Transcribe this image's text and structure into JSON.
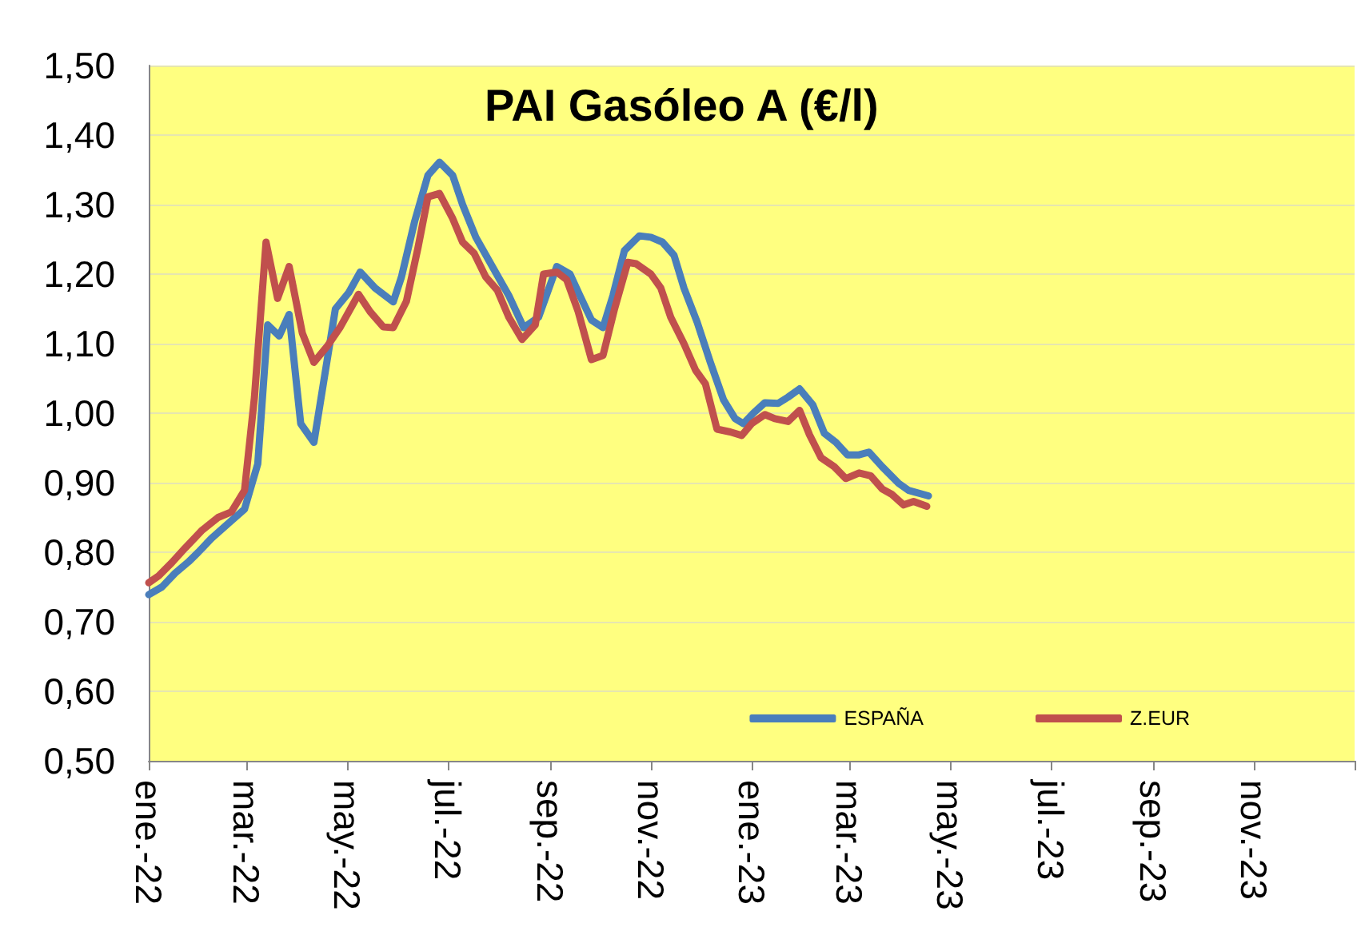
{
  "chart_data": {
    "type": "line",
    "title": "PAI Gasóleo A (€/l)",
    "xlim": [
      "2022-01-01",
      "2024-01-01"
    ],
    "xticks": [
      {
        "value": "2022-01-01",
        "label": "ene.-22"
      },
      {
        "value": "2022-03-01",
        "label": "mar.-22"
      },
      {
        "value": "2022-05-01",
        "label": "may.-22"
      },
      {
        "value": "2022-07-01",
        "label": "jul.-22"
      },
      {
        "value": "2022-09-01",
        "label": "sep.-22"
      },
      {
        "value": "2022-11-01",
        "label": "nov.-22"
      },
      {
        "value": "2023-01-01",
        "label": "ene.-23"
      },
      {
        "value": "2023-03-01",
        "label": "mar.-23"
      },
      {
        "value": "2023-05-01",
        "label": "may.-23"
      },
      {
        "value": "2023-07-01",
        "label": "jul.-23"
      },
      {
        "value": "2023-09-01",
        "label": "sep.-23"
      },
      {
        "value": "2023-11-01",
        "label": "nov.-23"
      },
      {
        "value": "2024-01-01",
        "label": null
      }
    ],
    "ylim": [
      0.5,
      1.5
    ],
    "yticks": [
      {
        "value": 0.5,
        "label": "0,50"
      },
      {
        "value": 0.6,
        "label": "0,60"
      },
      {
        "value": 0.7,
        "label": "0,70"
      },
      {
        "value": 0.8,
        "label": "0,80"
      },
      {
        "value": 0.9,
        "label": "0,90"
      },
      {
        "value": 1.0,
        "label": "1,00"
      },
      {
        "value": 1.1,
        "label": "1,10"
      },
      {
        "value": 1.2,
        "label": "1,20"
      },
      {
        "value": 1.3,
        "label": "1,30"
      },
      {
        "value": 1.4,
        "label": "1,40"
      },
      {
        "value": 1.5,
        "label": "1,50"
      }
    ],
    "grid": "y",
    "legend": "bottom right",
    "marker": "none",
    "series": [
      {
        "name": "ESPAÑA",
        "color": "#4a7ebb",
        "x": [
          "2022-01-01",
          "2022-01-09",
          "2022-01-17",
          "2022-01-25",
          "2022-01-31",
          "2022-02-08",
          "2022-02-17",
          "2022-02-28",
          "2022-03-08",
          "2022-03-14",
          "2022-03-21",
          "2022-03-27",
          "2022-04-03",
          "2022-04-11",
          "2022-04-24",
          "2022-05-02",
          "2022-05-09",
          "2022-05-18",
          "2022-05-29",
          "2022-06-03",
          "2022-06-11",
          "2022-06-19",
          "2022-06-26",
          "2022-07-04",
          "2022-07-10",
          "2022-07-18",
          "2022-07-28",
          "2022-08-07",
          "2022-08-16",
          "2022-08-25",
          "2022-09-05",
          "2022-09-13",
          "2022-09-19",
          "2022-09-26",
          "2022-10-03",
          "2022-10-09",
          "2022-10-16",
          "2022-10-25",
          "2022-11-01",
          "2022-11-08",
          "2022-11-15",
          "2022-11-21",
          "2022-11-29",
          "2022-12-07",
          "2022-12-15",
          "2022-12-22",
          "2022-12-27",
          "2023-01-02",
          "2023-01-09",
          "2023-01-17",
          "2023-01-23",
          "2023-01-30",
          "2023-02-07",
          "2023-02-14",
          "2023-02-21",
          "2023-02-28",
          "2023-03-07",
          "2023-03-13",
          "2023-03-21",
          "2023-03-31",
          "2023-04-06",
          "2023-04-18"
        ],
        "values": [
          0.739,
          0.75,
          0.77,
          0.786,
          0.8,
          0.82,
          0.839,
          0.862,
          0.927,
          1.127,
          1.111,
          1.142,
          0.985,
          0.958,
          1.15,
          1.173,
          1.203,
          1.18,
          1.16,
          1.196,
          1.276,
          1.342,
          1.361,
          1.342,
          1.3,
          1.253,
          1.211,
          1.169,
          1.123,
          1.138,
          1.211,
          1.2,
          1.169,
          1.134,
          1.123,
          1.169,
          1.234,
          1.255,
          1.253,
          1.246,
          1.227,
          1.18,
          1.131,
          1.073,
          1.019,
          0.992,
          0.985,
          1.0,
          1.015,
          1.014,
          1.023,
          1.035,
          1.012,
          0.971,
          0.958,
          0.94,
          0.94,
          0.944,
          0.923,
          0.899,
          0.889,
          0.881
        ]
      },
      {
        "name": "Z.EUR",
        "color": "#c0504d",
        "x": [
          "2022-01-01",
          "2022-01-07",
          "2022-01-15",
          "2022-01-23",
          "2022-02-02",
          "2022-02-12",
          "2022-02-20",
          "2022-02-28",
          "2022-03-06",
          "2022-03-13",
          "2022-03-20",
          "2022-03-27",
          "2022-04-04",
          "2022-04-11",
          "2022-04-19",
          "2022-04-27",
          "2022-05-08",
          "2022-05-15",
          "2022-05-23",
          "2022-05-29",
          "2022-06-06",
          "2022-06-13",
          "2022-06-19",
          "2022-06-26",
          "2022-07-04",
          "2022-07-10",
          "2022-07-17",
          "2022-07-24",
          "2022-07-31",
          "2022-08-07",
          "2022-08-15",
          "2022-08-23",
          "2022-08-28",
          "2022-09-05",
          "2022-09-11",
          "2022-09-18",
          "2022-09-26",
          "2022-10-03",
          "2022-10-10",
          "2022-10-18",
          "2022-10-23",
          "2022-11-01",
          "2022-11-07",
          "2022-11-13",
          "2022-11-21",
          "2022-11-28",
          "2022-12-04",
          "2022-12-11",
          "2022-12-19",
          "2022-12-26",
          "2023-01-01",
          "2023-01-09",
          "2023-01-15",
          "2023-01-23",
          "2023-01-30",
          "2023-02-05",
          "2023-02-12",
          "2023-02-20",
          "2023-02-27",
          "2023-03-07",
          "2023-03-14",
          "2023-03-21",
          "2023-03-27",
          "2023-04-03",
          "2023-04-09",
          "2023-04-17"
        ],
        "values": [
          0.756,
          0.766,
          0.785,
          0.806,
          0.831,
          0.85,
          0.858,
          0.889,
          1.023,
          1.246,
          1.165,
          1.211,
          1.115,
          1.073,
          1.096,
          1.124,
          1.171,
          1.146,
          1.124,
          1.123,
          1.161,
          1.238,
          1.311,
          1.316,
          1.28,
          1.246,
          1.23,
          1.196,
          1.177,
          1.138,
          1.106,
          1.127,
          1.2,
          1.203,
          1.192,
          1.146,
          1.077,
          1.083,
          1.15,
          1.217,
          1.215,
          1.2,
          1.18,
          1.138,
          1.1,
          1.062,
          1.042,
          0.977,
          0.973,
          0.968,
          0.985,
          0.998,
          0.992,
          0.988,
          1.004,
          0.969,
          0.936,
          0.923,
          0.906,
          0.914,
          0.91,
          0.891,
          0.883,
          0.868,
          0.873,
          0.866
        ]
      }
    ]
  }
}
